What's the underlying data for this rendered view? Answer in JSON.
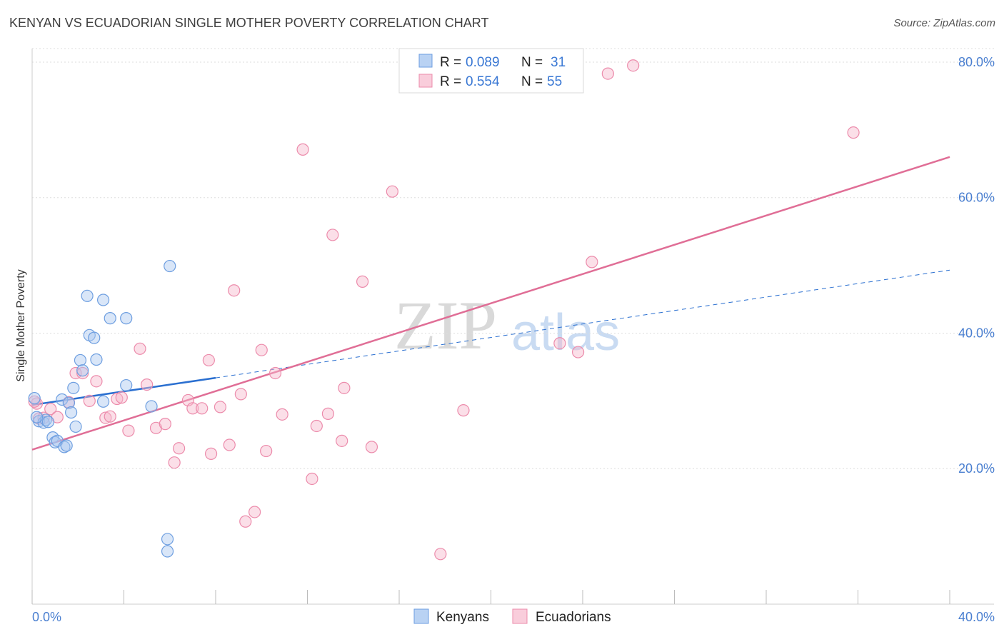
{
  "title": "KENYAN VS ECUADORIAN SINGLE MOTHER POVERTY CORRELATION CHART",
  "source": "Source: ZipAtlas.com",
  "watermark": {
    "zip": "ZIP",
    "atlas": "atlas"
  },
  "legend": {
    "r_label": "R =",
    "n_label": "N =",
    "entries": [
      {
        "r": "0.089",
        "n": "31",
        "color": "#aac8f0"
      },
      {
        "r": "0.554",
        "n": "55",
        "color": "#f6b8cc"
      }
    ]
  },
  "bottom_legend": [
    "Kenyans",
    "Ecuadorians"
  ],
  "chart_data": {
    "type": "scatter",
    "title": "KENYAN VS ECUADORIAN SINGLE MOTHER POVERTY CORRELATION CHART",
    "xlabel": "",
    "ylabel": "Single Mother Poverty",
    "xlim": [
      0,
      40
    ],
    "ylim": [
      0,
      82
    ],
    "x_tick_labels": [
      "0.0%",
      "40.0%"
    ],
    "y_ticks": [
      20,
      40,
      60,
      80
    ],
    "y_tick_labels": [
      "20.0%",
      "40.0%",
      "60.0%",
      "80.0%"
    ],
    "grid": true,
    "legend_position": "top-center",
    "colors": {
      "kenyans": "#6d9ee0",
      "ecuadorians": "#ec8bab",
      "kenyan_line": "#2a6fd0",
      "ecuadorian_line": "#e06e96"
    },
    "series": [
      {
        "name": "Kenyans",
        "points": [
          [
            0.1,
            30.4
          ],
          [
            0.3,
            27.0
          ],
          [
            0.5,
            26.8
          ],
          [
            0.6,
            27.2
          ],
          [
            0.7,
            26.9
          ],
          [
            0.9,
            24.6
          ],
          [
            1.0,
            23.9
          ],
          [
            1.1,
            24.1
          ],
          [
            1.4,
            23.2
          ],
          [
            1.5,
            23.4
          ],
          [
            1.3,
            30.2
          ],
          [
            1.6,
            29.7
          ],
          [
            1.7,
            28.3
          ],
          [
            1.8,
            31.9
          ],
          [
            1.9,
            26.2
          ],
          [
            2.1,
            36.0
          ],
          [
            2.2,
            34.5
          ],
          [
            2.4,
            45.5
          ],
          [
            2.5,
            39.7
          ],
          [
            2.7,
            39.3
          ],
          [
            2.8,
            36.1
          ],
          [
            3.1,
            44.9
          ],
          [
            3.1,
            29.9
          ],
          [
            3.4,
            42.2
          ],
          [
            4.1,
            42.2
          ],
          [
            4.1,
            32.3
          ],
          [
            5.2,
            29.2
          ],
          [
            5.9,
            9.6
          ],
          [
            5.9,
            7.8
          ],
          [
            6.0,
            49.9
          ],
          [
            0.2,
            27.6
          ]
        ],
        "trend": {
          "x0": 0,
          "y0": 29.4,
          "x1": 8,
          "y1": 33.4,
          "dashed_to_x": 40,
          "dashed_to_y": 49.3
        }
      },
      {
        "name": "Ecuadorians",
        "points": [
          [
            0.2,
            29.6
          ],
          [
            0.3,
            27.4
          ],
          [
            0.5,
            27.5
          ],
          [
            0.8,
            28.8
          ],
          [
            1.1,
            27.6
          ],
          [
            1.6,
            29.8
          ],
          [
            1.9,
            34.1
          ],
          [
            2.2,
            34.1
          ],
          [
            2.5,
            30.0
          ],
          [
            2.8,
            32.9
          ],
          [
            3.2,
            27.5
          ],
          [
            3.4,
            27.7
          ],
          [
            3.7,
            30.3
          ],
          [
            3.9,
            30.5
          ],
          [
            4.2,
            25.6
          ],
          [
            4.7,
            37.7
          ],
          [
            5.0,
            32.4
          ],
          [
            5.4,
            26.0
          ],
          [
            5.8,
            26.6
          ],
          [
            6.2,
            20.9
          ],
          [
            6.4,
            23.0
          ],
          [
            6.8,
            30.1
          ],
          [
            7.0,
            28.9
          ],
          [
            7.4,
            28.9
          ],
          [
            7.7,
            36.0
          ],
          [
            7.8,
            22.2
          ],
          [
            8.2,
            29.1
          ],
          [
            8.6,
            23.5
          ],
          [
            8.8,
            46.3
          ],
          [
            9.1,
            31.0
          ],
          [
            9.3,
            12.2
          ],
          [
            9.7,
            13.6
          ],
          [
            10.0,
            37.5
          ],
          [
            10.2,
            22.6
          ],
          [
            10.6,
            34.1
          ],
          [
            10.9,
            28.0
          ],
          [
            11.8,
            67.1
          ],
          [
            12.2,
            18.5
          ],
          [
            12.4,
            26.3
          ],
          [
            12.9,
            28.1
          ],
          [
            13.1,
            54.5
          ],
          [
            13.5,
            24.1
          ],
          [
            13.6,
            31.9
          ],
          [
            14.4,
            47.6
          ],
          [
            14.8,
            23.2
          ],
          [
            15.7,
            60.9
          ],
          [
            17.8,
            7.4
          ],
          [
            18.8,
            28.6
          ],
          [
            23.0,
            38.5
          ],
          [
            23.8,
            37.2
          ],
          [
            24.4,
            50.5
          ],
          [
            25.1,
            78.3
          ],
          [
            26.2,
            79.5
          ],
          [
            35.8,
            69.6
          ],
          [
            0.1,
            29.9
          ]
        ],
        "trend": {
          "x0": 0,
          "y0": 22.8,
          "x1": 40,
          "y1": 66.0
        }
      }
    ]
  }
}
